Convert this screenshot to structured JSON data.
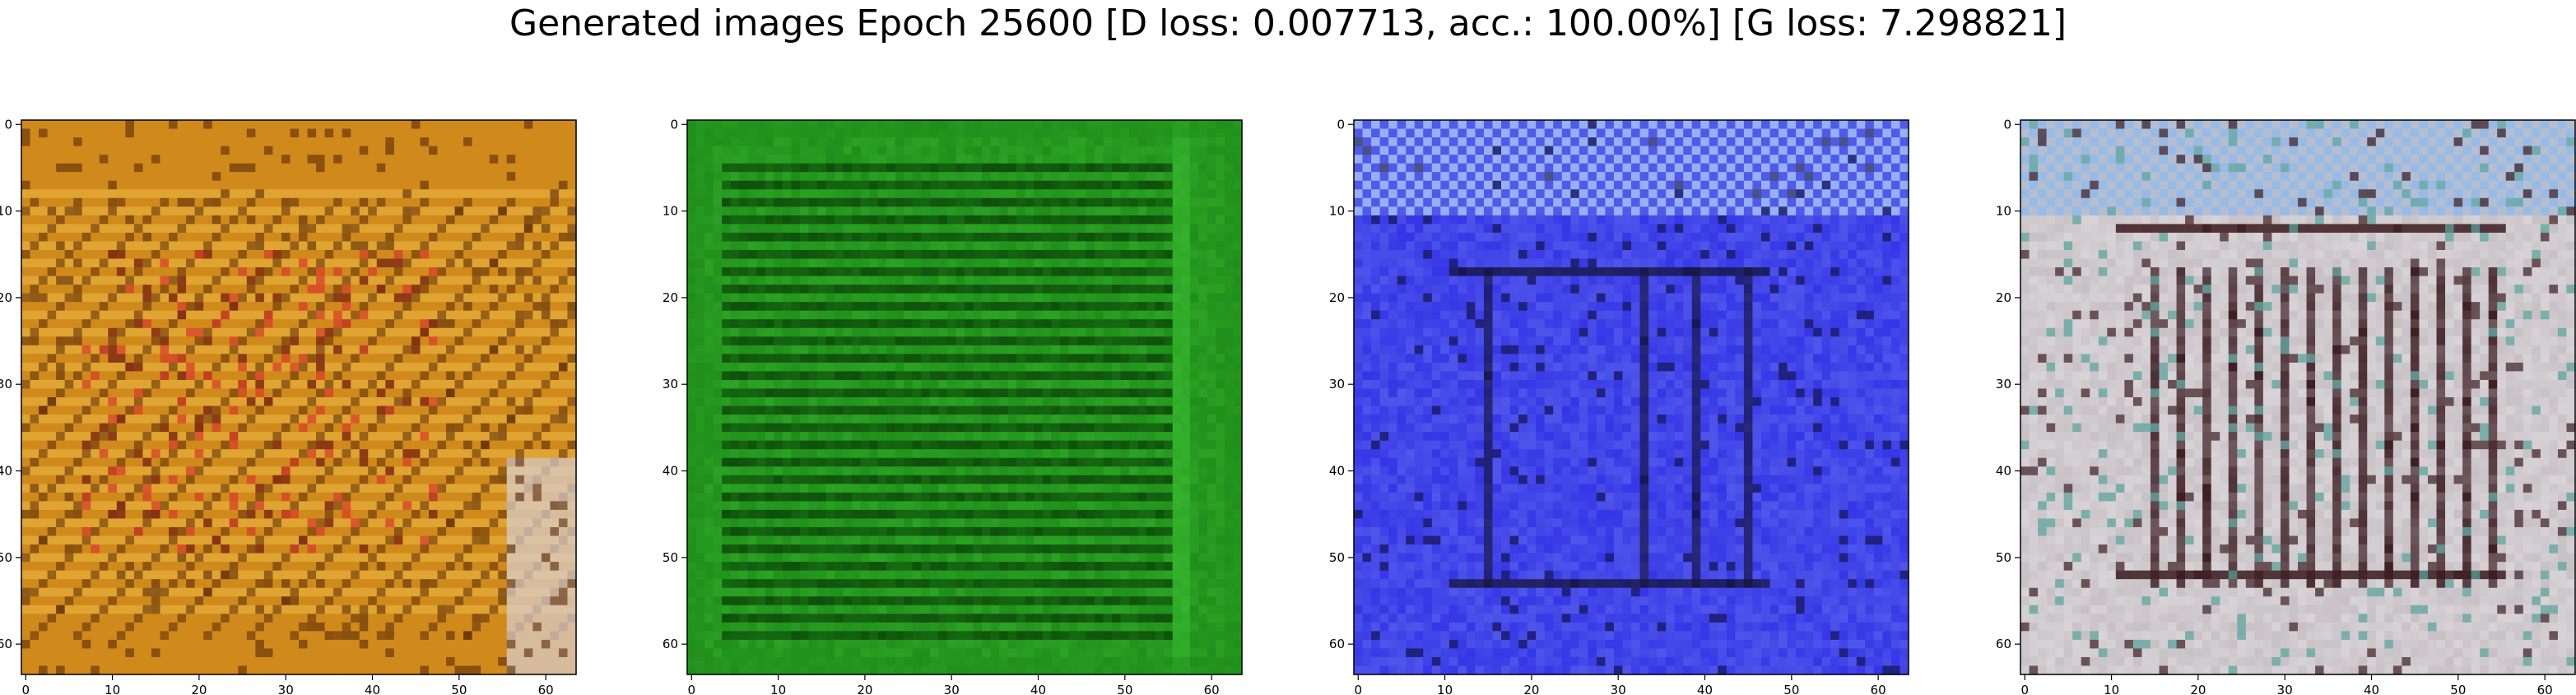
{
  "figure": {
    "title": "Generated images Epoch 25600 [D loss: 0.007713, acc.: 100.00%] [G loss: 7.298821]"
  },
  "chart_data": [
    {
      "type": "heatmap",
      "title": "",
      "xlabel": "",
      "ylabel": "",
      "xlim": [
        -0.5,
        63.5
      ],
      "ylim": [
        63.5,
        -0.5
      ],
      "xticks": [
        0,
        10,
        20,
        30,
        40,
        50,
        60
      ],
      "yticks": [
        0,
        10,
        20,
        30,
        40,
        50,
        60
      ],
      "grid": false,
      "colors": {
        "base": "#d08a1c",
        "dark": "#5a2a08",
        "light": "#f2c44a",
        "accent": "#d8382a",
        "corner": "#d8d0d4"
      }
    },
    {
      "type": "heatmap",
      "title": "",
      "xlabel": "",
      "ylabel": "",
      "xlim": [
        -0.5,
        63.5
      ],
      "ylim": [
        63.5,
        -0.5
      ],
      "xticks": [
        0,
        10,
        20,
        30,
        40,
        50,
        60
      ],
      "yticks": [
        0,
        10,
        20,
        30,
        40,
        50,
        60
      ],
      "grid": false,
      "colors": {
        "base": "#1f8f1a",
        "dark": "#0b3a08",
        "light": "#3ec034"
      }
    },
    {
      "type": "heatmap",
      "title": "",
      "xlabel": "",
      "ylabel": "",
      "xlim": [
        -0.5,
        63.5
      ],
      "ylim": [
        63.5,
        -0.5
      ],
      "xticks": [
        0,
        10,
        20,
        30,
        40,
        50,
        60
      ],
      "yticks": [
        0,
        10,
        20,
        30,
        40,
        50,
        60
      ],
      "grid": false,
      "colors": {
        "base": "#3434e6",
        "dark": "#14143a",
        "light": "#8ea4f4",
        "top": "#a6c6f6"
      }
    },
    {
      "type": "heatmap",
      "title": "",
      "xlabel": "",
      "ylabel": "",
      "xlim": [
        -0.5,
        63.5
      ],
      "ylim": [
        63.5,
        -0.5
      ],
      "xticks": [
        0,
        10,
        20,
        30,
        40,
        50,
        60
      ],
      "yticks": [
        0,
        10,
        20,
        30,
        40,
        50,
        60
      ],
      "grid": false,
      "colors": {
        "base": "#c6c0c4",
        "dark": "#3a1a1e",
        "light": "#ece8ea",
        "top": "#8cb8ee",
        "accent": "#5aa6a0"
      }
    }
  ]
}
